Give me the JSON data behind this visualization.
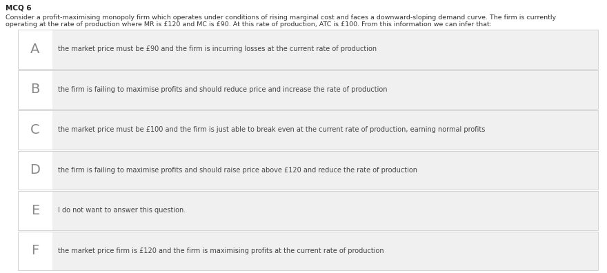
{
  "title": "MCQ 6",
  "question_line1": "Consider a profit-maximising monopoly firm which operates under conditions of rising marginal cost and faces a downward-sloping demand curve. The firm is currently",
  "question_line2": "operating at the rate of production where MR is £120 and MC is £90. At this rate of production, ATC is £100. From this information we can infer that:",
  "options": [
    {
      "label": "A",
      "text": "the market price must be £90 and the firm is incurring losses at the current rate of production"
    },
    {
      "label": "B",
      "text": "the firm is failing to maximise profits and should reduce price and increase the rate of production"
    },
    {
      "label": "C",
      "text": "the market price must be £100 and the firm is just able to break even at the current rate of production, earning normal profits"
    },
    {
      "label": "D",
      "text": "the firm is failing to maximise profits and should raise price above £120 and reduce the rate of production"
    },
    {
      "label": "E",
      "text": "I do not want to answer this question."
    },
    {
      "label": "F",
      "text": "the market price firm is £120 and the firm is maximising profits at the current rate of production"
    }
  ],
  "page_bg": "#ffffff",
  "row_label_bg": "#ffffff",
  "row_content_bg": "#f0f0f0",
  "row_border_color": "#d0d0d0",
  "outer_border_color": "#cccccc",
  "title_fontsize": 7.5,
  "question_fontsize": 6.8,
  "label_fontsize": 14,
  "option_fontsize": 7.0,
  "title_color": "#222222",
  "question_color": "#333333",
  "label_color": "#888888",
  "option_text_color": "#444444"
}
